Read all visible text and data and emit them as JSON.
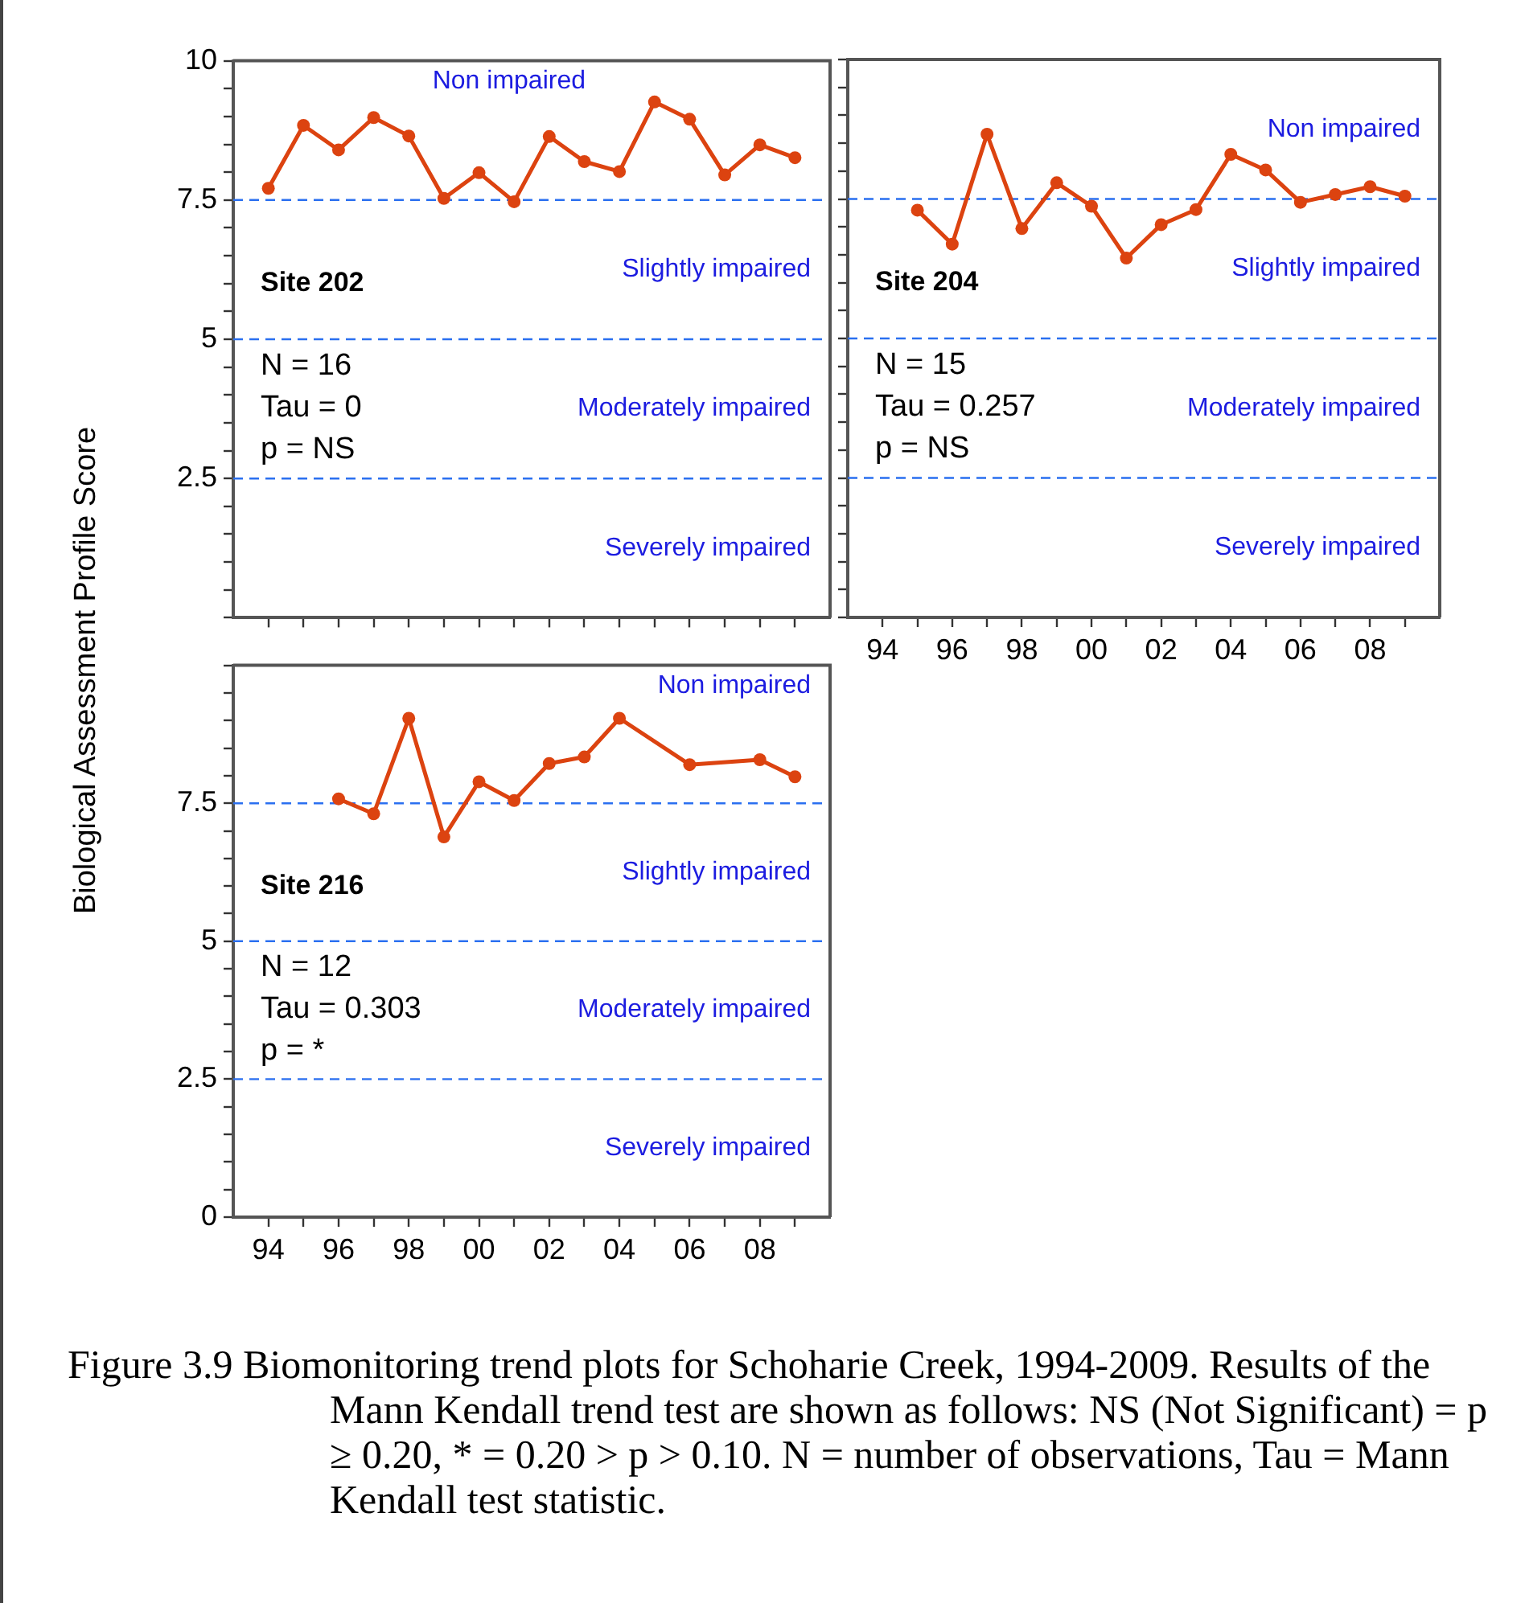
{
  "chart_data": [
    {
      "type": "line",
      "title": "Site 202",
      "ylabel": "Biological Assessment Profile Score",
      "tick_labels": "y",
      "marker": "circle",
      "line_style": "solid",
      "x": [
        1994,
        1995,
        1996,
        1997,
        1998,
        1999,
        2000,
        2001,
        2002,
        2003,
        2004,
        2005,
        2006,
        2007,
        2008,
        2009
      ],
      "series": [
        {
          "color": "#dc4310",
          "values": [
            7.71,
            8.84,
            8.4,
            8.98,
            8.65,
            7.53,
            7.99,
            7.47,
            8.64,
            8.19,
            8.01,
            9.26,
            8.95,
            7.95,
            8.49,
            8.26
          ]
        }
      ],
      "xlim": [
        1993,
        2010
      ],
      "xticks": [
        {
          "value": 1994,
          "label": null
        },
        {
          "value": 1995,
          "label": null
        },
        {
          "value": 1996,
          "label": null
        },
        {
          "value": 1997,
          "label": null
        },
        {
          "value": 1998,
          "label": null
        },
        {
          "value": 1999,
          "label": null
        },
        {
          "value": 2000,
          "label": null
        },
        {
          "value": 2001,
          "label": null
        },
        {
          "value": 2002,
          "label": null
        },
        {
          "value": 2003,
          "label": null
        },
        {
          "value": 2004,
          "label": null
        },
        {
          "value": 2005,
          "label": null
        },
        {
          "value": 2006,
          "label": null
        },
        {
          "value": 2007,
          "label": null
        },
        {
          "value": 2008,
          "label": null
        },
        {
          "value": 2009,
          "label": null
        }
      ],
      "ylim": [
        0,
        10
      ],
      "yticks": [
        {
          "value": 0,
          "label": null
        },
        {
          "value": 0.5,
          "label": null
        },
        {
          "value": 1,
          "label": null
        },
        {
          "value": 1.5,
          "label": null
        },
        {
          "value": 2,
          "label": null
        },
        2.5,
        {
          "value": 3,
          "label": null
        },
        {
          "value": 3.5,
          "label": null
        },
        {
          "value": 4,
          "label": null
        },
        {
          "value": 4.5,
          "label": null
        },
        5,
        {
          "value": 5.5,
          "label": null
        },
        {
          "value": 6,
          "label": null
        },
        {
          "value": 6.5,
          "label": null
        },
        {
          "value": 7,
          "label": null
        },
        7.5,
        {
          "value": 8,
          "label": null
        },
        {
          "value": 8.5,
          "label": null
        },
        {
          "value": 9,
          "label": null
        },
        {
          "value": 9.5,
          "label": null
        },
        10
      ],
      "ref_lines": [
        {
          "axis": "y",
          "value": 7.5,
          "color": "#2a6ff0",
          "line_style": "dashed"
        },
        {
          "axis": "y",
          "value": 5,
          "color": "#2a6ff0",
          "line_style": "dashed"
        },
        {
          "axis": "y",
          "value": 2.5,
          "color": "#2a6ff0",
          "line_style": "dashed"
        }
      ],
      "annotations": [
        "Non impaired",
        "Slightly impaired",
        "Moderately impaired",
        "Severely impaired",
        "N = 16",
        "Tau = 0",
        "p = NS"
      ]
    },
    {
      "type": "line",
      "title": "Site 204",
      "tick_labels": "x",
      "marker": "circle",
      "line_style": "solid",
      "x": [
        1995,
        1996,
        1997,
        1998,
        1999,
        2000,
        2001,
        2002,
        2003,
        2004,
        2005,
        2006,
        2007,
        2008,
        2009
      ],
      "series": [
        {
          "color": "#dc4310",
          "values": [
            7.3,
            6.69,
            8.66,
            6.97,
            7.79,
            7.37,
            6.44,
            7.04,
            7.31,
            8.3,
            8.02,
            7.44,
            7.58,
            7.72,
            7.55
          ]
        }
      ],
      "xlim": [
        1993,
        2010
      ],
      "xticks": [
        {
          "value": 1994,
          "label": "94"
        },
        {
          "value": 1995,
          "label": null
        },
        {
          "value": 1996,
          "label": "96"
        },
        {
          "value": 1997,
          "label": null
        },
        {
          "value": 1998,
          "label": "98"
        },
        {
          "value": 1999,
          "label": null
        },
        {
          "value": 2000,
          "label": "00"
        },
        {
          "value": 2001,
          "label": null
        },
        {
          "value": 2002,
          "label": "02"
        },
        {
          "value": 2003,
          "label": null
        },
        {
          "value": 2004,
          "label": "04"
        },
        {
          "value": 2005,
          "label": null
        },
        {
          "value": 2006,
          "label": "06"
        },
        {
          "value": 2007,
          "label": null
        },
        {
          "value": 2008,
          "label": "08"
        },
        {
          "value": 2009,
          "label": null
        }
      ],
      "ylim": [
        0,
        10
      ],
      "yticks": [
        {
          "value": 0,
          "label": null
        },
        {
          "value": 0.5,
          "label": null
        },
        {
          "value": 1,
          "label": null
        },
        {
          "value": 1.5,
          "label": null
        },
        {
          "value": 2,
          "label": null
        },
        {
          "value": 2.5,
          "label": null
        },
        {
          "value": 3,
          "label": null
        },
        {
          "value": 3.5,
          "label": null
        },
        {
          "value": 4,
          "label": null
        },
        {
          "value": 4.5,
          "label": null
        },
        {
          "value": 5,
          "label": null
        },
        {
          "value": 5.5,
          "label": null
        },
        {
          "value": 6,
          "label": null
        },
        {
          "value": 6.5,
          "label": null
        },
        {
          "value": 7,
          "label": null
        },
        {
          "value": 7.5,
          "label": null
        },
        {
          "value": 8,
          "label": null
        },
        {
          "value": 8.5,
          "label": null
        },
        {
          "value": 9,
          "label": null
        },
        {
          "value": 9.5,
          "label": null
        },
        {
          "value": 10,
          "label": null
        }
      ],
      "ref_lines": [
        {
          "axis": "y",
          "value": 7.5,
          "color": "#2a6ff0",
          "line_style": "dashed"
        },
        {
          "axis": "y",
          "value": 5,
          "color": "#2a6ff0",
          "line_style": "dashed"
        },
        {
          "axis": "y",
          "value": 2.5,
          "color": "#2a6ff0",
          "line_style": "dashed"
        }
      ],
      "annotations": [
        "Non impaired",
        "Slightly impaired",
        "Moderately impaired",
        "Severely impaired",
        "N = 15",
        "Tau = 0.257",
        "p = NS"
      ]
    },
    {
      "type": "line",
      "title": "Site 216",
      "marker": "circle",
      "line_style": "solid",
      "x": [
        1996,
        1997,
        1998,
        1999,
        2000,
        2001,
        2002,
        2003,
        2004,
        2006,
        2008,
        2009
      ],
      "series": [
        {
          "color": "#dc4310",
          "values": [
            7.58,
            7.31,
            9.04,
            6.89,
            7.89,
            7.55,
            8.22,
            8.34,
            9.04,
            8.2,
            8.29,
            7.98
          ]
        }
      ],
      "xlim": [
        1993,
        2010
      ],
      "xticks": [
        {
          "value": 1994,
          "label": "94"
        },
        {
          "value": 1995,
          "label": null
        },
        {
          "value": 1996,
          "label": "96"
        },
        {
          "value": 1997,
          "label": null
        },
        {
          "value": 1998,
          "label": "98"
        },
        {
          "value": 1999,
          "label": null
        },
        {
          "value": 2000,
          "label": "00"
        },
        {
          "value": 2001,
          "label": null
        },
        {
          "value": 2002,
          "label": "02"
        },
        {
          "value": 2003,
          "label": null
        },
        {
          "value": 2004,
          "label": "04"
        },
        {
          "value": 2005,
          "label": null
        },
        {
          "value": 2006,
          "label": "06"
        },
        {
          "value": 2007,
          "label": null
        },
        {
          "value": 2008,
          "label": "08"
        },
        {
          "value": 2009,
          "label": null
        }
      ],
      "ylim": [
        0,
        10
      ],
      "yticks": [
        0,
        {
          "value": 0.5,
          "label": null
        },
        {
          "value": 1,
          "label": null
        },
        {
          "value": 1.5,
          "label": null
        },
        {
          "value": 2,
          "label": null
        },
        2.5,
        {
          "value": 3,
          "label": null
        },
        {
          "value": 3.5,
          "label": null
        },
        {
          "value": 4,
          "label": null
        },
        {
          "value": 4.5,
          "label": null
        },
        5,
        {
          "value": 5.5,
          "label": null
        },
        {
          "value": 6,
          "label": null
        },
        {
          "value": 6.5,
          "label": null
        },
        {
          "value": 7,
          "label": null
        },
        7.5,
        {
          "value": 8,
          "label": null
        },
        {
          "value": 8.5,
          "label": null
        },
        {
          "value": 9,
          "label": null
        },
        {
          "value": 9.5,
          "label": null
        },
        {
          "value": 10,
          "label": null
        }
      ],
      "ref_lines": [
        {
          "axis": "y",
          "value": 7.5,
          "color": "#2a6ff0",
          "line_style": "dashed"
        },
        {
          "axis": "y",
          "value": 5,
          "color": "#2a6ff0",
          "line_style": "dashed"
        },
        {
          "axis": "y",
          "value": 2.5,
          "color": "#2a6ff0",
          "line_style": "dashed"
        }
      ],
      "annotations": [
        "Non impaired",
        "Slightly impaired",
        "Moderately impaired",
        "Severely impaired",
        "N = 12",
        "Tau = 0.303",
        "p = *"
      ]
    },
    {
      "type": "other",
      "annotations": [
        "Figure 3.9  Biomonitoring trend plots for Schoharie Creek, 1994-2009. Results of the Mann Kendall trend test are shown as follows: NS (Not Significant) = p ≥ 0.20, * = 0.20 > p > 0.10. N = number of observations, Tau = Mann Kendall test statistic."
      ]
    }
  ]
}
